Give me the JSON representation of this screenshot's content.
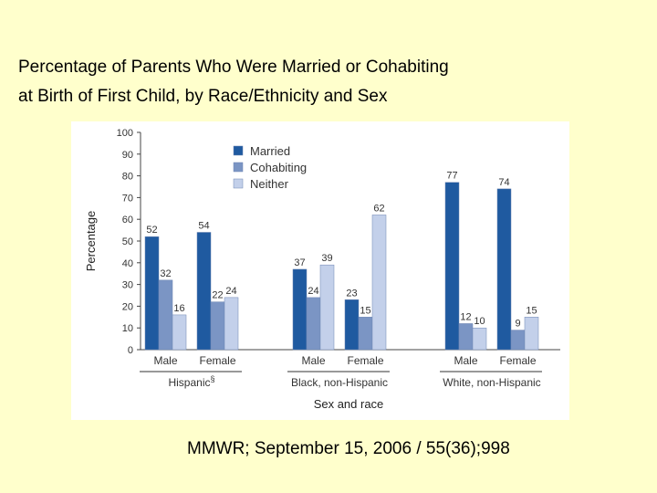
{
  "slide": {
    "title_line1": "Percentage of Parents Who Were Married or Cohabiting",
    "title_line2": "at Birth of First Child, by Race/Ethnicity and Sex",
    "citation": "MMWR; September 15, 2006 / 55(36);998"
  },
  "colors": {
    "background": "#ffffcc",
    "married": "#1f5aa0",
    "cohabiting": "#7b95c4",
    "neither": "#c3d0ea"
  },
  "chart_data": {
    "type": "bar",
    "title": "",
    "xlabel": "Sex and race",
    "ylabel": "Percentage",
    "ylim": [
      0,
      100
    ],
    "yticks": [
      0,
      10,
      20,
      30,
      40,
      50,
      60,
      70,
      80,
      90,
      100
    ],
    "grid": false,
    "legend_position": "top-left",
    "groups": [
      {
        "label": "Hispanic",
        "superscript": "§",
        "categories": [
          "Male",
          "Female"
        ]
      },
      {
        "label": "Black, non-Hispanic",
        "superscript": "",
        "categories": [
          "Male",
          "Female"
        ]
      },
      {
        "label": "White, non-Hispanic",
        "superscript": "",
        "categories": [
          "Male",
          "Female"
        ]
      }
    ],
    "series": [
      {
        "name": "Married",
        "color": "#1f5aa0",
        "values": [
          52,
          54,
          37,
          23,
          77,
          74
        ]
      },
      {
        "name": "Cohabiting",
        "color": "#7b95c4",
        "values": [
          32,
          22,
          24,
          15,
          12,
          9
        ]
      },
      {
        "name": "Neither",
        "color": "#c3d0ea",
        "values": [
          16,
          24,
          39,
          62,
          10,
          15
        ]
      }
    ]
  }
}
